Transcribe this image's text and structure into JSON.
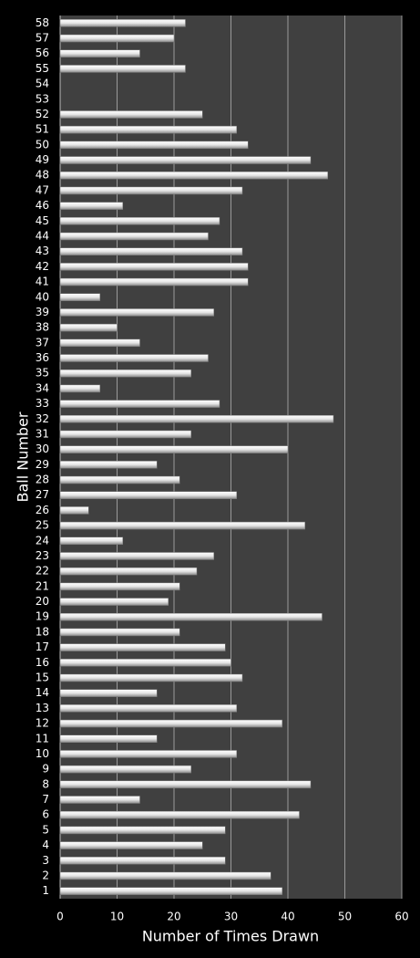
{
  "chart_data": {
    "type": "bar",
    "orientation": "horizontal",
    "x_label": "Number of Times Drawn",
    "y_label": "Ball Number",
    "categories": [
      "1",
      "2",
      "3",
      "4",
      "5",
      "6",
      "7",
      "8",
      "9",
      "10",
      "11",
      "12",
      "13",
      "14",
      "15",
      "16",
      "17",
      "18",
      "19",
      "20",
      "21",
      "22",
      "23",
      "24",
      "25",
      "26",
      "27",
      "28",
      "29",
      "30",
      "31",
      "32",
      "33",
      "34",
      "35",
      "36",
      "37",
      "38",
      "39",
      "40",
      "41",
      "42",
      "43",
      "44",
      "45",
      "46",
      "47",
      "48",
      "49",
      "50",
      "51",
      "52",
      "53",
      "54",
      "55",
      "56",
      "57",
      "58"
    ],
    "values": [
      39,
      37,
      29,
      25,
      29,
      42,
      14,
      44,
      23,
      31,
      17,
      39,
      31,
      17,
      32,
      30,
      29,
      21,
      46,
      19,
      21,
      24,
      27,
      11,
      43,
      5,
      31,
      21,
      17,
      40,
      23,
      48,
      28,
      7,
      23,
      26,
      14,
      10,
      27,
      7,
      33,
      33,
      32,
      26,
      28,
      11,
      32,
      47,
      44,
      33,
      31,
      25,
      0,
      0,
      22,
      14,
      20,
      22
    ],
    "color": "#ffffff",
    "xlim": [
      0,
      60
    ],
    "xticks": [
      0,
      10,
      20,
      30,
      40,
      50,
      60
    ],
    "grid": true
  }
}
